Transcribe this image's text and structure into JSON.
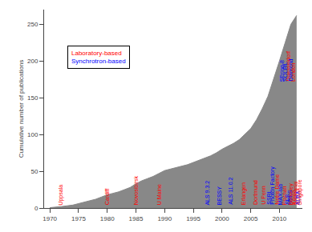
{
  "chart_data": {
    "type": "area",
    "ylabel": "Cumulative number of publications",
    "x": [
      1970,
      1971,
      1972,
      1973,
      1974,
      1975,
      1976,
      1977,
      1978,
      1979,
      1980,
      1981,
      1982,
      1983,
      1984,
      1985,
      1986,
      1987,
      1988,
      1989,
      1990,
      1991,
      1992,
      1993,
      1994,
      1995,
      1996,
      1997,
      1998,
      1999,
      2000,
      2001,
      2002,
      2003,
      2004,
      2005,
      2006,
      2007,
      2008,
      2009,
      2010,
      2011,
      2012,
      2013
    ],
    "values": [
      0.5,
      1,
      2,
      3,
      4,
      6,
      8,
      10,
      12,
      15,
      18,
      20,
      22,
      25,
      28,
      33,
      37,
      40,
      43,
      47,
      51,
      53,
      55,
      57,
      59,
      62,
      65,
      68,
      71,
      75,
      80,
      84,
      88,
      93,
      100,
      108,
      120,
      135,
      152,
      175,
      200,
      225,
      250,
      262
    ],
    "color": "#888888",
    "xlim": [
      1969,
      2014
    ],
    "ylim": [
      0,
      270
    ],
    "xticks": [
      1970,
      1975,
      1980,
      1985,
      1990,
      1995,
      2000,
      2005,
      2010
    ],
    "yticks": [
      0,
      50,
      100,
      150,
      200,
      250
    ],
    "grid": false,
    "legend": "upper left",
    "legend_entries": [
      {
        "text": "Laboratory-based",
        "color": "red"
      },
      {
        "text": "Synchrotron-based",
        "color": "blue"
      }
    ],
    "annotations": [
      {
        "text": "Uppsala",
        "x": 1972,
        "y": 2,
        "color": "red"
      },
      {
        "text": "Cardiff",
        "x": 1980,
        "y": 2,
        "color": "red"
      },
      {
        "text": "Novosibirsk",
        "x": 1985,
        "y": 2,
        "color": "red"
      },
      {
        "text": "U Maine",
        "x": 1989,
        "y": 2,
        "color": "red"
      },
      {
        "text": "ALS 9.3.2",
        "x": 1997.5,
        "y": 2,
        "color": "blue"
      },
      {
        "text": "BESSY",
        "x": 1999.5,
        "y": 2,
        "color": "blue"
      },
      {
        "text": "ALS 11.0.2",
        "x": 2001.5,
        "y": 2,
        "color": "blue"
      },
      {
        "text": "Erlangen",
        "x": 2003.8,
        "y": 2,
        "color": "red"
      },
      {
        "text": "Dortmund",
        "x": 2005.8,
        "y": 2,
        "color": "red"
      },
      {
        "text": "U Penn",
        "x": 2007.3,
        "y": 2,
        "color": "red"
      },
      {
        "text": "SSRL",
        "x": 2008.2,
        "y": 2,
        "color": "blue"
      },
      {
        "text": "Photon Factory",
        "x": 2008.9,
        "y": 2,
        "color": "blue"
      },
      {
        "text": "Notre Dame",
        "x": 2009.6,
        "y": 2,
        "color": "red"
      },
      {
        "text": "MAX-lab",
        "x": 2010.2,
        "y": 2,
        "color": "blue"
      },
      {
        "text": "Poznan",
        "x": 2010.8,
        "y": 2,
        "color": "red"
      },
      {
        "text": "SLS",
        "x": 2011.3,
        "y": 2,
        "color": "blue"
      },
      {
        "text": "NSLS",
        "x": 2011.8,
        "y": 2,
        "color": "blue"
      },
      {
        "text": "Berkeley",
        "x": 2012.1,
        "y": 2,
        "color": "red"
      },
      {
        "text": "Korea",
        "x": 2012.5,
        "y": 2,
        "color": "red"
      },
      {
        "text": "Shanghai",
        "x": 2012.85,
        "y": 2,
        "color": "red"
      },
      {
        "text": "ALBA",
        "x": 2013.2,
        "y": 2,
        "color": "blue"
      },
      {
        "text": "Singapore",
        "x": 2013.6,
        "y": 2,
        "color": "red"
      },
      {
        "text": "SPring-8",
        "x": 2010.5,
        "y": 170,
        "color": "blue"
      },
      {
        "text": "SOLEIL",
        "x": 2011.0,
        "y": 170,
        "color": "blue"
      },
      {
        "text": "Duesseldorf",
        "x": 2011.5,
        "y": 170,
        "color": "red"
      },
      {
        "text": "Diamond",
        "x": 2012.0,
        "y": 170,
        "color": "blue"
      },
      {
        "text": "London",
        "x": 2012.4,
        "y": 170,
        "color": "red"
      }
    ]
  }
}
